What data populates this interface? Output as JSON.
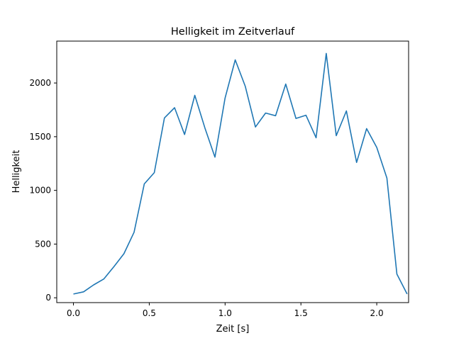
{
  "chart_data": {
    "type": "line",
    "title": "Helligkeit im Zeitverlauf",
    "xlabel": "Zeit [s]",
    "ylabel": "Helligkeit",
    "xlim": [
      -0.11,
      2.21
    ],
    "ylim": [
      -45,
      2390
    ],
    "xticks": [
      0.0,
      0.5,
      1.0,
      1.5,
      2.0
    ],
    "xtick_labels": [
      "0.0",
      "0.5",
      "1.0",
      "1.5",
      "2.0"
    ],
    "yticks": [
      0,
      500,
      1000,
      1500,
      2000
    ],
    "ytick_labels": [
      "0",
      "500",
      "1000",
      "1500",
      "2000"
    ],
    "grid": false,
    "legend": "none",
    "series": [
      {
        "color": "#1f77b4",
        "x": [
          0.0,
          0.067,
          0.133,
          0.2,
          0.267,
          0.333,
          0.4,
          0.467,
          0.533,
          0.6,
          0.667,
          0.733,
          0.8,
          0.867,
          0.933,
          1.0,
          1.067,
          1.133,
          1.2,
          1.267,
          1.333,
          1.4,
          1.467,
          1.533,
          1.6,
          1.667,
          1.733,
          1.8,
          1.867,
          1.933,
          2.0,
          2.067,
          2.133,
          2.2
        ],
        "y": [
          35,
          55,
          120,
          175,
          290,
          410,
          610,
          1060,
          1165,
          1675,
          1770,
          1520,
          1885,
          1580,
          1310,
          1860,
          2215,
          1970,
          1590,
          1720,
          1695,
          1990,
          1670,
          1700,
          1490,
          2275,
          1510,
          1740,
          1260,
          1575,
          1400,
          1115,
          220,
          35
        ]
      }
    ]
  }
}
